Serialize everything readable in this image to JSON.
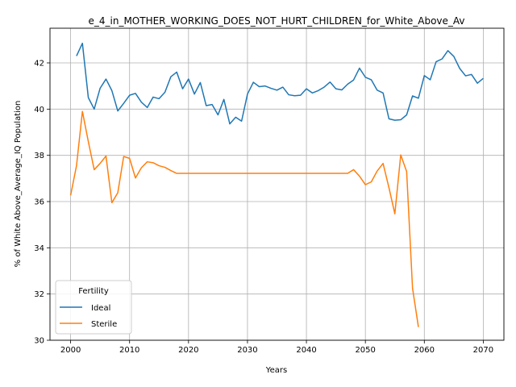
{
  "chart_data": {
    "type": "line",
    "title": "e_4_in_MOTHER_WORKING_DOES_NOT_HURT_CHILDREN_for_White_Above_Av",
    "xlabel": "Years",
    "ylabel": "% of White Above_Average_IQ Population",
    "xlim": [
      1996.5,
      2073.5
    ],
    "ylim": [
      30.0,
      43.5
    ],
    "xticks": [
      2000,
      2010,
      2020,
      2030,
      2040,
      2050,
      2060,
      2070
    ],
    "yticks": [
      30,
      32,
      34,
      36,
      38,
      40,
      42
    ],
    "grid": true,
    "legend": {
      "title": "Fertility",
      "placement": "lower-left"
    },
    "series": [
      {
        "name": "Ideal",
        "color": "#1f77b4",
        "x": [
          2001,
          2002,
          2003,
          2004,
          2005,
          2006,
          2007,
          2008,
          2009,
          2010,
          2011,
          2012,
          2013,
          2014,
          2015,
          2016,
          2017,
          2018,
          2019,
          2020,
          2021,
          2022,
          2023,
          2024,
          2025,
          2026,
          2027,
          2028,
          2029,
          2030,
          2031,
          2032,
          2033,
          2034,
          2035,
          2036,
          2037,
          2038,
          2039,
          2040,
          2041,
          2042,
          2043,
          2044,
          2045,
          2046,
          2047,
          2048,
          2049,
          2050,
          2051,
          2052,
          2053,
          2054,
          2055,
          2056,
          2057,
          2058,
          2059,
          2060,
          2061,
          2062,
          2063,
          2064,
          2065,
          2066,
          2067,
          2068,
          2069,
          2070
        ],
        "values": [
          42.3,
          42.85,
          40.5,
          40.0,
          40.9,
          41.3,
          40.8,
          39.92,
          40.25,
          40.6,
          40.68,
          40.3,
          40.07,
          40.52,
          40.45,
          40.73,
          41.4,
          41.6,
          40.88,
          41.3,
          40.65,
          41.15,
          40.15,
          40.2,
          39.75,
          40.42,
          39.36,
          39.65,
          39.48,
          40.65,
          41.16,
          40.97,
          41.0,
          40.9,
          40.82,
          40.95,
          40.62,
          40.58,
          40.6,
          40.88,
          40.7,
          40.8,
          40.95,
          41.17,
          40.88,
          40.83,
          41.08,
          41.26,
          41.77,
          41.38,
          41.27,
          40.82,
          40.7,
          39.58,
          39.52,
          39.54,
          39.75,
          40.57,
          40.47,
          41.45,
          41.27,
          42.05,
          42.17,
          42.53,
          42.28,
          41.76,
          41.44,
          41.5,
          41.12,
          41.33
        ]
      },
      {
        "name": "Sterile",
        "color": "#ff7f0e",
        "x": [
          2000,
          2001,
          2002,
          2003,
          2004,
          2005,
          2006,
          2007,
          2008,
          2009,
          2010,
          2011,
          2012,
          2013,
          2014,
          2015,
          2016,
          2017,
          2018,
          2019,
          2020,
          2021,
          2022,
          2023,
          2024,
          2025,
          2026,
          2027,
          2028,
          2029,
          2030,
          2031,
          2032,
          2033,
          2034,
          2035,
          2036,
          2037,
          2038,
          2039,
          2040,
          2041,
          2042,
          2043,
          2044,
          2045,
          2046,
          2047,
          2048,
          2049,
          2050,
          2051,
          2052,
          2053,
          2054,
          2055,
          2056,
          2057,
          2058,
          2059
        ],
        "values": [
          36.27,
          37.55,
          39.9,
          38.6,
          37.38,
          37.65,
          37.97,
          35.95,
          36.38,
          37.95,
          37.87,
          37.02,
          37.46,
          37.72,
          37.68,
          37.55,
          37.48,
          37.34,
          37.22,
          37.22,
          37.22,
          37.22,
          37.22,
          37.22,
          37.22,
          37.22,
          37.22,
          37.22,
          37.22,
          37.22,
          37.22,
          37.22,
          37.22,
          37.22,
          37.22,
          37.22,
          37.22,
          37.22,
          37.22,
          37.22,
          37.22,
          37.22,
          37.22,
          37.22,
          37.22,
          37.22,
          37.22,
          37.22,
          37.38,
          37.1,
          36.73,
          36.85,
          37.32,
          37.65,
          36.6,
          35.47,
          38.02,
          37.3,
          32.25,
          30.57
        ]
      }
    ]
  }
}
